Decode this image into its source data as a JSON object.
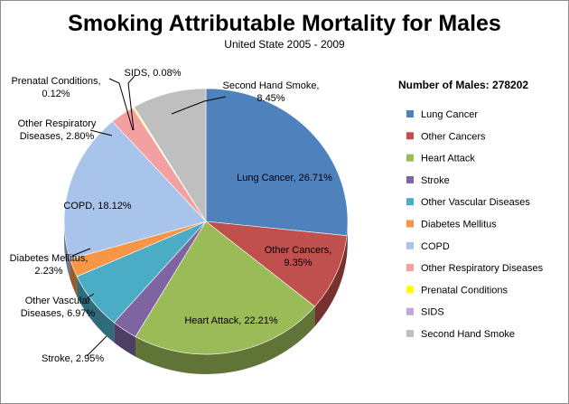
{
  "chart_data": {
    "type": "pie",
    "title": "Smoking Attributable Mortality for Males",
    "subtitle": "United State 2005  - 2009",
    "legend_title": "Number of Males: 278202",
    "legend_position": "right",
    "slices": [
      {
        "name": "Lung Cancer",
        "value": 26.71,
        "label": "Lung Cancer, 26.71%",
        "color": "#4f81bd"
      },
      {
        "name": "Other Cancers",
        "value": 9.35,
        "label": "Other Cancers, 9.35%",
        "color": "#c0504d"
      },
      {
        "name": "Heart Attack",
        "value": 22.21,
        "label": "Heart Attack, 22.21%",
        "color": "#9bbb59"
      },
      {
        "name": "Stroke",
        "value": 2.95,
        "label": "Stroke, 2.95%",
        "color": "#8064a2"
      },
      {
        "name": "Other Vascular Diseases",
        "value": 6.97,
        "label": "Other Vascular Diseases, 6.97%",
        "color": "#4bacc6"
      },
      {
        "name": "Diabetes Mellitus",
        "value": 2.23,
        "label": "Diabetes Mellitus, 2.23%",
        "color": "#f79646"
      },
      {
        "name": "COPD",
        "value": 18.12,
        "label": "COPD, 18.12%",
        "color": "#a9c4eb"
      },
      {
        "name": "Other Respiratory Diseases",
        "value": 2.8,
        "label": "Other Respiratory Diseases, 2.80%",
        "color": "#f2a0a0"
      },
      {
        "name": "Prenatal Conditions",
        "value": 0.12,
        "label": "Prenatal Conditions, 0.12%",
        "color": "#ffff00"
      },
      {
        "name": "SIDS",
        "value": 0.08,
        "label": "SIDS, 0.08%",
        "color": "#c0a7d9"
      },
      {
        "name": "Second Hand Smoke",
        "value": 8.45,
        "label": "Second Hand Smoke, 8.45%",
        "color": "#bfbfbf"
      }
    ]
  }
}
